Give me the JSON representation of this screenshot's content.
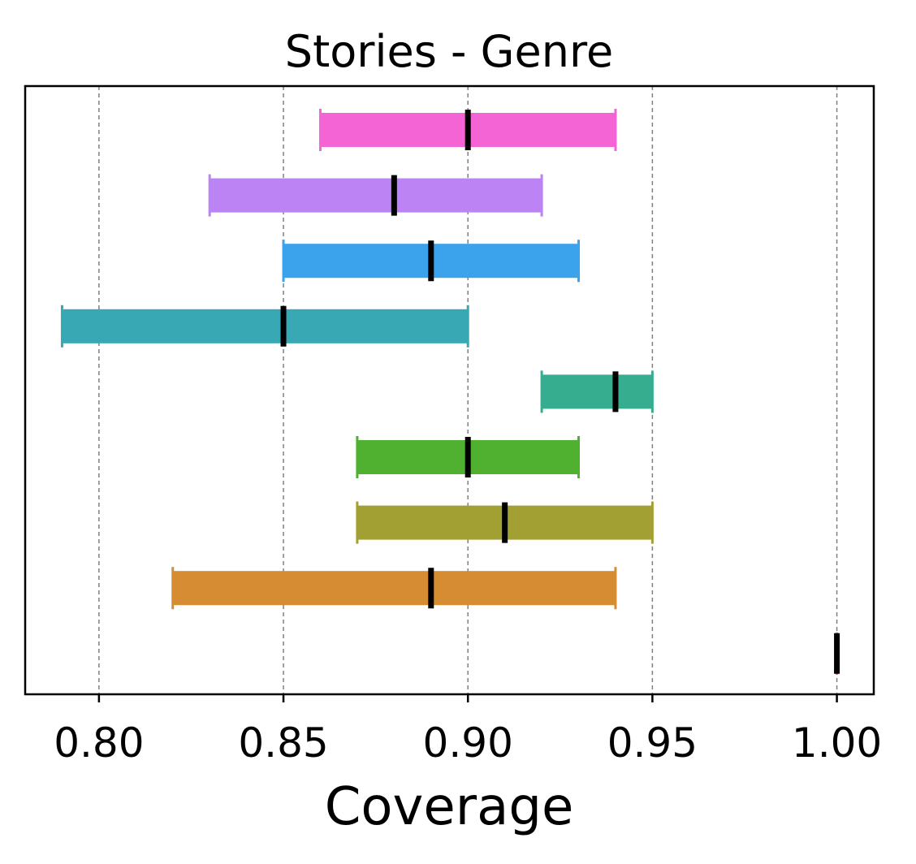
{
  "chart_data": {
    "type": "bar",
    "subtype": "interval",
    "title": "Stories - Genre",
    "xlabel": "Coverage",
    "ylabel": "",
    "xlim": [
      0.78,
      1.01
    ],
    "xticks": [
      0.8,
      0.85,
      0.9,
      0.95,
      1.0
    ],
    "xtick_labels": [
      "0.80",
      "0.85",
      "0.90",
      "0.95",
      "1.00"
    ],
    "grid": "x-dashed",
    "legend": "none",
    "series": [
      {
        "low": 0.86,
        "high": 0.94,
        "mid": 0.9,
        "color": "#f564d4"
      },
      {
        "low": 0.83,
        "high": 0.92,
        "mid": 0.88,
        "color": "#bb83f4"
      },
      {
        "low": 0.85,
        "high": 0.93,
        "mid": 0.89,
        "color": "#3ba3ec"
      },
      {
        "low": 0.79,
        "high": 0.9,
        "mid": 0.85,
        "color": "#38a9b4"
      },
      {
        "low": 0.92,
        "high": 0.95,
        "mid": 0.94,
        "color": "#36ad8f"
      },
      {
        "low": 0.87,
        "high": 0.93,
        "mid": 0.9,
        "color": "#50b131"
      },
      {
        "low": 0.87,
        "high": 0.95,
        "mid": 0.91,
        "color": "#a3a033"
      },
      {
        "low": 0.82,
        "high": 0.94,
        "mid": 0.89,
        "color": "#d58c32"
      },
      {
        "low": 1.0,
        "high": 1.0,
        "mid": 1.0,
        "color": "#f37b85"
      }
    ]
  }
}
